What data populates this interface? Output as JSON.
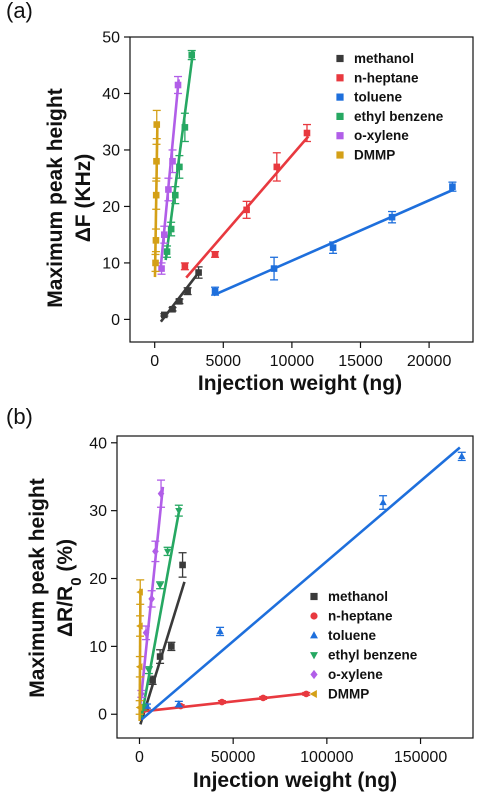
{
  "chart_data": [
    {
      "panel_label": "(a)",
      "type": "scatter",
      "xlabel": "Injection weight (ng)",
      "ylabel_line1": "Maximum peak height",
      "ylabel_line2": "ΔF (KHz)",
      "xlim": [
        -1800,
        23200
      ],
      "ylim": [
        -4,
        50
      ],
      "xticks": [
        0,
        5000,
        10000,
        15000,
        20000
      ],
      "xtick_labels": [
        "0",
        "5000",
        "10000",
        "15000",
        "20000"
      ],
      "yticks": [
        0,
        10,
        20,
        30,
        40,
        50
      ],
      "ytick_labels": [
        "0",
        "10",
        "20",
        "30",
        "40",
        "50"
      ],
      "marker": "square",
      "legend_position": "top-right",
      "series": [
        {
          "name": "methanol",
          "color": "#3a3a3a",
          "points": [
            [
              700,
              0.8
            ],
            [
              1300,
              1.8
            ],
            [
              1800,
              3.2
            ],
            [
              2400,
              5.0
            ],
            [
              3200,
              8.3
            ]
          ],
          "errors": [
            0.2,
            0.3,
            0.4,
            0.6,
            1.0
          ],
          "fit": [
            [
              450,
              -0.4
            ],
            [
              3300,
              8.6
            ]
          ]
        },
        {
          "name": "n-heptane",
          "color": "#e8393f",
          "points": [
            [
              2200,
              9.4
            ],
            [
              4400,
              11.5
            ],
            [
              6700,
              19.4
            ],
            [
              8900,
              27.0
            ],
            [
              11100,
              33.0
            ]
          ],
          "errors": [
            0.6,
            0.5,
            1.5,
            2.5,
            1.5
          ],
          "fit": [
            [
              2300,
              7.4
            ],
            [
              11200,
              32.4
            ]
          ]
        },
        {
          "name": "toluene",
          "color": "#1e6fdc",
          "points": [
            [
              4400,
              5.0
            ],
            [
              8700,
              9.0
            ],
            [
              13000,
              12.7
            ],
            [
              17300,
              18.1
            ],
            [
              21700,
              23.5
            ]
          ],
          "errors": [
            0.7,
            2.0,
            1.0,
            1.0,
            0.8
          ],
          "fit": [
            [
              4300,
              4.3
            ],
            [
              21800,
              23.0
            ]
          ]
        },
        {
          "name": "ethyl benzene",
          "color": "#26a862",
          "points": [
            [
              900,
              12.0
            ],
            [
              1200,
              16.0
            ],
            [
              1500,
              22.0
            ],
            [
              1800,
              27.0
            ],
            [
              2200,
              34.0
            ],
            [
              2700,
              46.8
            ]
          ],
          "errors": [
            1.0,
            1.2,
            1.5,
            2.0,
            2.5,
            0.8
          ],
          "fit": [
            [
              800,
              10.5
            ],
            [
              2800,
              47.5
            ]
          ]
        },
        {
          "name": "o-xylene",
          "color": "#b15ee8",
          "points": [
            [
              500,
              9.0
            ],
            [
              700,
              15.0
            ],
            [
              1000,
              23.0
            ],
            [
              1300,
              28.0
            ],
            [
              1700,
              41.5
            ]
          ],
          "errors": [
            1.0,
            1.5,
            2.0,
            2.0,
            1.5
          ],
          "fit": [
            [
              450,
              9.5
            ],
            [
              1750,
              42.5
            ]
          ]
        },
        {
          "name": "DMMP",
          "color": "#d4a017",
          "points": [
            [
              60,
              10.0
            ],
            [
              90,
              14.0
            ],
            [
              110,
              22.0
            ],
            [
              130,
              28.0
            ],
            [
              150,
              34.5
            ]
          ],
          "errors": [
            1.5,
            2.0,
            2.5,
            3.0,
            2.5
          ],
          "fit": [
            [
              20,
              7.5
            ],
            [
              200,
              35.0
            ]
          ]
        }
      ]
    },
    {
      "panel_label": "(b)",
      "type": "scatter",
      "xlabel": "Injection weight (ng)",
      "ylabel_line1": "Maximum peak height",
      "ylabel_line2": "ΔR/R",
      "ylabel_sub": "0",
      "ylabel_suffix": " (%)",
      "xlim": [
        -12000,
        178000
      ],
      "ylim": [
        -3.5,
        41
      ],
      "xticks": [
        0,
        50000,
        100000,
        150000
      ],
      "xtick_labels": [
        "0",
        "50000",
        "100000",
        "150000"
      ],
      "yticks": [
        0,
        10,
        20,
        30,
        40
      ],
      "ytick_labels": [
        "0",
        "10",
        "20",
        "30",
        "40"
      ],
      "legend_position": "bottom-right",
      "series": [
        {
          "name": "methanol",
          "color": "#3a3a3a",
          "marker": "square",
          "points": [
            [
              3000,
              1.0
            ],
            [
              7000,
              5.0
            ],
            [
              11000,
              8.5
            ],
            [
              17000,
              10.0
            ],
            [
              23000,
              22.0
            ]
          ],
          "errors": [
            0.3,
            0.6,
            1.0,
            0.6,
            1.8
          ],
          "fit": [
            [
              500,
              -1.5
            ],
            [
              24000,
              19.5
            ]
          ]
        },
        {
          "name": "n-heptane",
          "color": "#e8393f",
          "marker": "circle",
          "points": [
            [
              2000,
              0.6
            ],
            [
              22000,
              1.2
            ],
            [
              44000,
              1.8
            ],
            [
              66000,
              2.4
            ],
            [
              89000,
              3.0
            ]
          ],
          "errors": [
            0.2,
            0.2,
            0.2,
            0.2,
            0.2
          ],
          "fit": [
            [
              1000,
              0.4
            ],
            [
              90000,
              3.1
            ]
          ]
        },
        {
          "name": "toluene",
          "color": "#1e6fdc",
          "marker": "triangle-up",
          "points": [
            [
              4000,
              1.2
            ],
            [
              21000,
              1.5
            ],
            [
              43000,
              12.2
            ],
            [
              130000,
              31.2
            ],
            [
              172000,
              38.0
            ]
          ],
          "errors": [
            0.3,
            0.4,
            0.6,
            1.0,
            0.6
          ],
          "fit": [
            [
              1000,
              -0.8
            ],
            [
              171000,
              39.3
            ]
          ]
        },
        {
          "name": "ethyl benzene",
          "color": "#26a862",
          "marker": "triangle-down",
          "points": [
            [
              2000,
              1.0
            ],
            [
              5000,
              6.5
            ],
            [
              11000,
              19.0
            ],
            [
              15000,
              24.0
            ],
            [
              21000,
              30.0
            ]
          ],
          "errors": [
            0.4,
            0.5,
            0.5,
            0.6,
            0.8
          ],
          "fit": [
            [
              1000,
              -0.5
            ],
            [
              21500,
              30.5
            ]
          ]
        },
        {
          "name": "o-xylene",
          "color": "#b15ee8",
          "marker": "diamond",
          "points": [
            [
              1000,
              3.0
            ],
            [
              3500,
              12.0
            ],
            [
              6500,
              17.0
            ],
            [
              8500,
              24.0
            ],
            [
              11500,
              32.5
            ]
          ],
          "errors": [
            0.5,
            1.0,
            1.2,
            1.5,
            2.0
          ],
          "fit": [
            [
              500,
              1.5
            ],
            [
              12500,
              33.5
            ]
          ]
        },
        {
          "name": "DMMP",
          "color": "#d4a017",
          "marker": "triangle-left",
          "points": [
            [
              100,
              1.0
            ],
            [
              200,
              7.0
            ],
            [
              300,
              13.0
            ],
            [
              400,
              18.0
            ]
          ],
          "errors": [
            1.0,
            1.5,
            1.5,
            1.8
          ],
          "fit": [
            [
              100,
              -1.0
            ],
            [
              500,
              18.5
            ]
          ]
        }
      ]
    }
  ]
}
